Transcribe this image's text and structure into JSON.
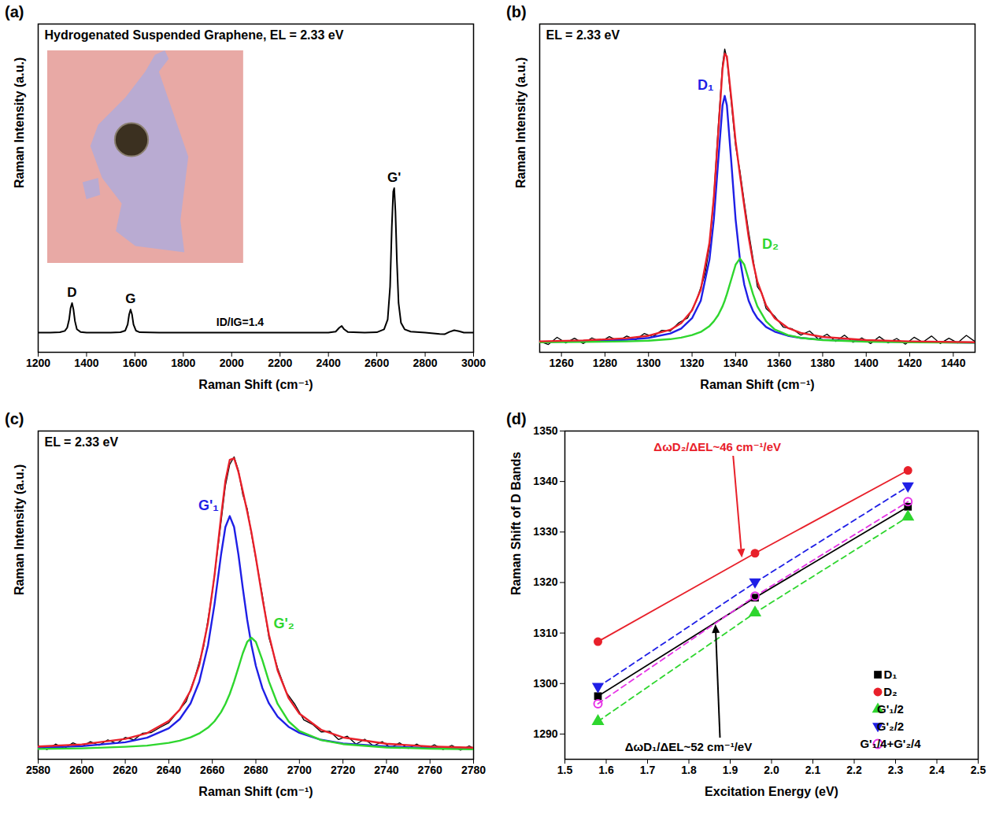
{
  "chart_data": [
    {
      "type": "line",
      "panel_label": "(a)",
      "title": "Hydrogenated Suspended Graphene, EL = 2.33 eV",
      "xlabel": "Raman Shift (cm⁻¹)",
      "ylabel": "Raman Intensity (a.u.)",
      "annotation": "ID/IG=1.4",
      "xlim": [
        1200,
        3000
      ],
      "xticks": [
        1200,
        1400,
        1600,
        1800,
        2000,
        2200,
        2400,
        2600,
        2800,
        3000
      ],
      "ylim": [
        0,
        100
      ],
      "yticks": [],
      "tick_labels": "x",
      "peaks": [
        {
          "label": "D",
          "x": 1340
        },
        {
          "label": "G",
          "x": 1582
        },
        {
          "label": "G'",
          "x": 2672
        }
      ],
      "series": [
        {
          "color": "#000000",
          "x": [
            1200,
            1250,
            1290,
            1310,
            1320,
            1328,
            1334,
            1340,
            1346,
            1352,
            1360,
            1375,
            1400,
            1450,
            1500,
            1540,
            1560,
            1570,
            1576,
            1582,
            1588,
            1594,
            1604,
            1620,
            1700,
            1800,
            1900,
            2000,
            2100,
            2200,
            2300,
            2400,
            2430,
            2445,
            2455,
            2465,
            2480,
            2550,
            2600,
            2630,
            2645,
            2655,
            2662,
            2668,
            2672,
            2677,
            2683,
            2690,
            2700,
            2715,
            2740,
            2800,
            2860,
            2880,
            2900,
            2920,
            2940,
            2960,
            3000
          ],
          "values": [
            6,
            6,
            6.1,
            6.5,
            7.5,
            10,
            13.5,
            15,
            13,
            9.5,
            7,
            6.2,
            6,
            6,
            6,
            6.1,
            6.6,
            8.5,
            11.5,
            13,
            11.5,
            8.5,
            6.6,
            6.1,
            6,
            6,
            6,
            6,
            6,
            6,
            6,
            6,
            6.3,
            7.5,
            8,
            7,
            6.2,
            6,
            6.1,
            7,
            10,
            20,
            38,
            49,
            50,
            43,
            28,
            15,
            9,
            7,
            6.3,
            6,
            5.6,
            5.5,
            6.2,
            6.7,
            6.4,
            6,
            6
          ]
        }
      ]
    },
    {
      "type": "line",
      "panel_label": "(b)",
      "title": "EL = 2.33 eV",
      "xlabel": "Raman Shift (cm⁻¹)",
      "ylabel": "Raman Intensity (a.u.)",
      "xlim": [
        1250,
        1450
      ],
      "xticks": [
        1260,
        1280,
        1300,
        1320,
        1340,
        1360,
        1380,
        1400,
        1420,
        1440
      ],
      "ylim": [
        0,
        105
      ],
      "yticks": [],
      "tick_labels": "x",
      "series": [
        {
          "color": "#000000",
          "x": [
            1250,
            1254,
            1258,
            1262,
            1266,
            1270,
            1274,
            1278,
            1282,
            1286,
            1290,
            1294,
            1298,
            1302,
            1306,
            1310,
            1314,
            1318,
            1322,
            1326,
            1328,
            1330,
            1332,
            1334,
            1335,
            1336,
            1338,
            1340,
            1342,
            1344,
            1346,
            1348,
            1350,
            1352,
            1354,
            1358,
            1362,
            1366,
            1370,
            1374,
            1378,
            1382,
            1386,
            1390,
            1394,
            1398,
            1402,
            1406,
            1410,
            1414,
            1418,
            1422,
            1426,
            1430,
            1434,
            1438,
            1442,
            1446,
            1450
          ],
          "values": [
            3.5,
            2.5,
            4.8,
            3.0,
            4.5,
            2.8,
            4.6,
            3.4,
            5.0,
            3.6,
            5.2,
            4.0,
            6.0,
            5.0,
            7.0,
            6.8,
            9.5,
            11.0,
            16.5,
            25.0,
            34.0,
            50.0,
            72.0,
            92.0,
            97.0,
            94.0,
            80.0,
            66.0,
            58.0,
            48.0,
            38.5,
            30.0,
            21.0,
            19.0,
            14.0,
            11.5,
            8.0,
            7.5,
            5.5,
            6.8,
            4.2,
            5.8,
            3.5,
            5.5,
            3.2,
            4.6,
            2.8,
            5.0,
            3.0,
            4.4,
            2.6,
            4.8,
            3.2,
            5.2,
            2.8,
            4.5,
            3.0,
            5.4,
            3.4
          ]
        },
        {
          "name": "D₁",
          "color": "#1f1fe6",
          "x": [
            1250,
            1270,
            1290,
            1300,
            1310,
            1315,
            1320,
            1324,
            1328,
            1330,
            1332,
            1334,
            1335,
            1336,
            1338,
            1340,
            1342,
            1344,
            1346,
            1348,
            1350,
            1354,
            1358,
            1364,
            1370,
            1380,
            1400,
            1420,
            1450
          ],
          "values": [
            3.3,
            3.5,
            4.0,
            4.6,
            6.0,
            7.6,
            10.9,
            16.5,
            29.7,
            42.5,
            61.1,
            79.0,
            82,
            79.0,
            61.1,
            42.5,
            29.7,
            21.6,
            16.5,
            13.2,
            10.9,
            8.1,
            6.6,
            5.3,
            4.6,
            4.0,
            3.5,
            3.3,
            3.1
          ]
        },
        {
          "name": "D₂",
          "color": "#2ed62e",
          "x": [
            1250,
            1270,
            1290,
            1300,
            1310,
            1315,
            1320,
            1324,
            1328,
            1330,
            1332,
            1334,
            1335,
            1336,
            1338,
            1340,
            1342,
            1344,
            1346,
            1348,
            1350,
            1354,
            1358,
            1364,
            1370,
            1380,
            1400,
            1420,
            1450
          ],
          "values": [
            3.2,
            3.3,
            3.5,
            3.7,
            4.2,
            4.7,
            5.5,
            6.5,
            8.4,
            9.9,
            11.9,
            14.7,
            16.5,
            18.6,
            23.3,
            28.0,
            30,
            28.0,
            23.3,
            18.6,
            14.7,
            9.9,
            7.3,
            5.5,
            4.6,
            3.9,
            3.4,
            3.2,
            3.1
          ]
        },
        {
          "color": "#e8202a",
          "x": [
            1250,
            1270,
            1290,
            1300,
            1310,
            1315,
            1320,
            1324,
            1328,
            1330,
            1332,
            1334,
            1335,
            1336,
            1338,
            1340,
            1342,
            1344,
            1346,
            1348,
            1350,
            1354,
            1358,
            1364,
            1370,
            1380,
            1400,
            1420,
            1450
          ],
          "values": [
            3.5,
            3.8,
            4.5,
            5.3,
            7.2,
            9.3,
            13.4,
            20.0,
            35.1,
            49.4,
            70.0,
            90.7,
            95.5,
            94.6,
            81.4,
            67.5,
            56.7,
            46.6,
            36.8,
            28.8,
            22.6,
            15.0,
            10.9,
            7.8,
            6.2,
            4.9,
            3.9,
            3.5,
            3.2
          ]
        }
      ]
    },
    {
      "type": "line",
      "panel_label": "(c)",
      "title": "EL = 2.33 eV",
      "xlabel": "Raman Shift (cm⁻¹)",
      "ylabel": "Raman Intensity (a.u.)",
      "xlim": [
        2580,
        2780
      ],
      "xticks": [
        2580,
        2600,
        2620,
        2640,
        2660,
        2680,
        2700,
        2720,
        2740,
        2760,
        2780
      ],
      "ylim": [
        0,
        108
      ],
      "yticks": [],
      "tick_labels": "x",
      "series": [
        {
          "color": "#000000",
          "x": [
            2580,
            2584,
            2588,
            2592,
            2596,
            2600,
            2604,
            2608,
            2612,
            2616,
            2620,
            2624,
            2628,
            2632,
            2636,
            2640,
            2644,
            2648,
            2652,
            2656,
            2660,
            2663,
            2666,
            2668,
            2670,
            2672,
            2674,
            2676,
            2678,
            2680,
            2683,
            2686,
            2690,
            2694,
            2698,
            2702,
            2706,
            2710,
            2714,
            2718,
            2722,
            2726,
            2730,
            2734,
            2738,
            2742,
            2746,
            2750,
            2754,
            2758,
            2762,
            2766,
            2770,
            2774,
            2778,
            2780
          ],
          "values": [
            4.5,
            3.2,
            5.0,
            3.6,
            5.4,
            4.2,
            5.8,
            4.6,
            6.4,
            5.2,
            7.2,
            6.4,
            8.6,
            8.8,
            10.5,
            12.0,
            15.5,
            19.0,
            27.0,
            37.0,
            55,
            72,
            90,
            97,
            99.5,
            95,
            87,
            82.5,
            74,
            66,
            54,
            40,
            30,
            22,
            18,
            13,
            11.5,
            9.0,
            9.2,
            6.5,
            7.6,
            5.0,
            6.6,
            4.4,
            5.8,
            3.8,
            5.4,
            3.6,
            5.0,
            3.4,
            4.8,
            3.2,
            4.6,
            3.0,
            4.4,
            3.6
          ]
        },
        {
          "name": "G'₁",
          "color": "#1f1fe6",
          "x": [
            2580,
            2600,
            2620,
            2630,
            2640,
            2645,
            2650,
            2654,
            2658,
            2661,
            2664,
            2666,
            2668,
            2670,
            2672,
            2674,
            2676,
            2678,
            2680,
            2683,
            2686,
            2690,
            2695,
            2700,
            2710,
            2720,
            2740,
            2760,
            2780
          ],
          "values": [
            3.8,
            4.3,
            5.6,
            7.1,
            10.2,
            13.2,
            18.4,
            25.5,
            37.5,
            51.0,
            67.3,
            76.4,
            80,
            76.4,
            67.3,
            56.3,
            46.0,
            37.5,
            30.7,
            23.4,
            18.4,
            14.0,
            10.7,
            8.7,
            6.4,
            5.2,
            4.2,
            3.7,
            3.5
          ]
        },
        {
          "name": "G'₂",
          "color": "#2ed62e",
          "x": [
            2580,
            2600,
            2620,
            2630,
            2640,
            2645,
            2650,
            2654,
            2658,
            2661,
            2664,
            2666,
            2668,
            2670,
            2672,
            2674,
            2676,
            2678,
            2680,
            2683,
            2686,
            2690,
            2695,
            2700,
            2710,
            2720,
            2740,
            2760,
            2780
          ],
          "values": [
            3.4,
            3.6,
            4.1,
            4.5,
            5.4,
            6.1,
            7.2,
            8.5,
            10.4,
            12.5,
            15.5,
            18.2,
            21.5,
            25.6,
            30.2,
            34.9,
            38.6,
            40,
            38.6,
            32.6,
            25.6,
            18.2,
            12.5,
            9.3,
            6.3,
            5.0,
            3.9,
            3.5,
            3.3
          ]
        },
        {
          "color": "#e8202a",
          "x": [
            2580,
            2600,
            2620,
            2630,
            2640,
            2645,
            2650,
            2654,
            2658,
            2661,
            2664,
            2666,
            2668,
            2670,
            2672,
            2674,
            2676,
            2678,
            2680,
            2683,
            2686,
            2690,
            2695,
            2700,
            2710,
            2720,
            2740,
            2760,
            2780
          ],
          "values": [
            4.2,
            4.9,
            6.7,
            8.6,
            12.6,
            16.3,
            22.6,
            31.0,
            44.9,
            60.5,
            79.8,
            91.6,
            98.5,
            99.0,
            94.5,
            88.2,
            81.6,
            74.5,
            66.3,
            53.0,
            41.0,
            29.2,
            20.2,
            15.0,
            9.7,
            7.2,
            5.1,
            4.2,
            3.8
          ]
        }
      ]
    },
    {
      "type": "scatter",
      "panel_label": "(d)",
      "xlabel": "Excitation Energy (eV)",
      "ylabel": "Raman Shift of D Bands",
      "xlim": [
        1.5,
        2.5
      ],
      "xticks": [
        1.5,
        1.6,
        1.7,
        1.8,
        1.9,
        {
          "value": 2,
          "label": "2.0"
        },
        2.1,
        2.2,
        2.3,
        2.4,
        2.5
      ],
      "ylim": [
        1285,
        1350
      ],
      "yticks": [
        1290,
        1300,
        1310,
        1320,
        1330,
        1340,
        1350
      ],
      "legend": "bottom-right",
      "annotations": [
        {
          "text": "ΔωD₂/ΔEL~46 cm⁻¹/eV",
          "color": "#e8202a",
          "series": "D₂"
        },
        {
          "text": "ΔωD₁/ΔEL~52 cm⁻¹/eV",
          "color": "#000000",
          "series": "D₁"
        }
      ],
      "series": [
        {
          "name": "D₁",
          "color": "#000000",
          "marker": "square",
          "line_style": "solid",
          "x": [
            1.58,
            1.96,
            2.33
          ],
          "values": [
            1297.5,
            1317,
            1335
          ]
        },
        {
          "name": "D₂",
          "color": "#e8202a",
          "marker": "circle",
          "line_style": "solid",
          "x": [
            1.58,
            1.96,
            2.33
          ],
          "values": [
            1308.3,
            1325.8,
            1342.2
          ]
        },
        {
          "name": "G'₁/2",
          "color": "#2ed62e",
          "marker": "triangle-up",
          "line_style": "dashed",
          "x": [
            1.58,
            1.96,
            2.33
          ],
          "values": [
            1292.5,
            1314,
            1333
          ]
        },
        {
          "name": "G'₂/2",
          "color": "#1f1fe6",
          "marker": "triangle-down",
          "line_style": "dashed",
          "x": [
            1.58,
            1.96,
            2.33
          ],
          "values": [
            1299.3,
            1320,
            1339
          ]
        },
        {
          "name": "G'₁/4+G'₂/4",
          "color": "#e632e6",
          "marker": "circle-open",
          "line_style": "dashed",
          "x": [
            1.58,
            1.96,
            2.33
          ],
          "values": [
            1296,
            1317.3,
            1336
          ]
        }
      ]
    }
  ]
}
